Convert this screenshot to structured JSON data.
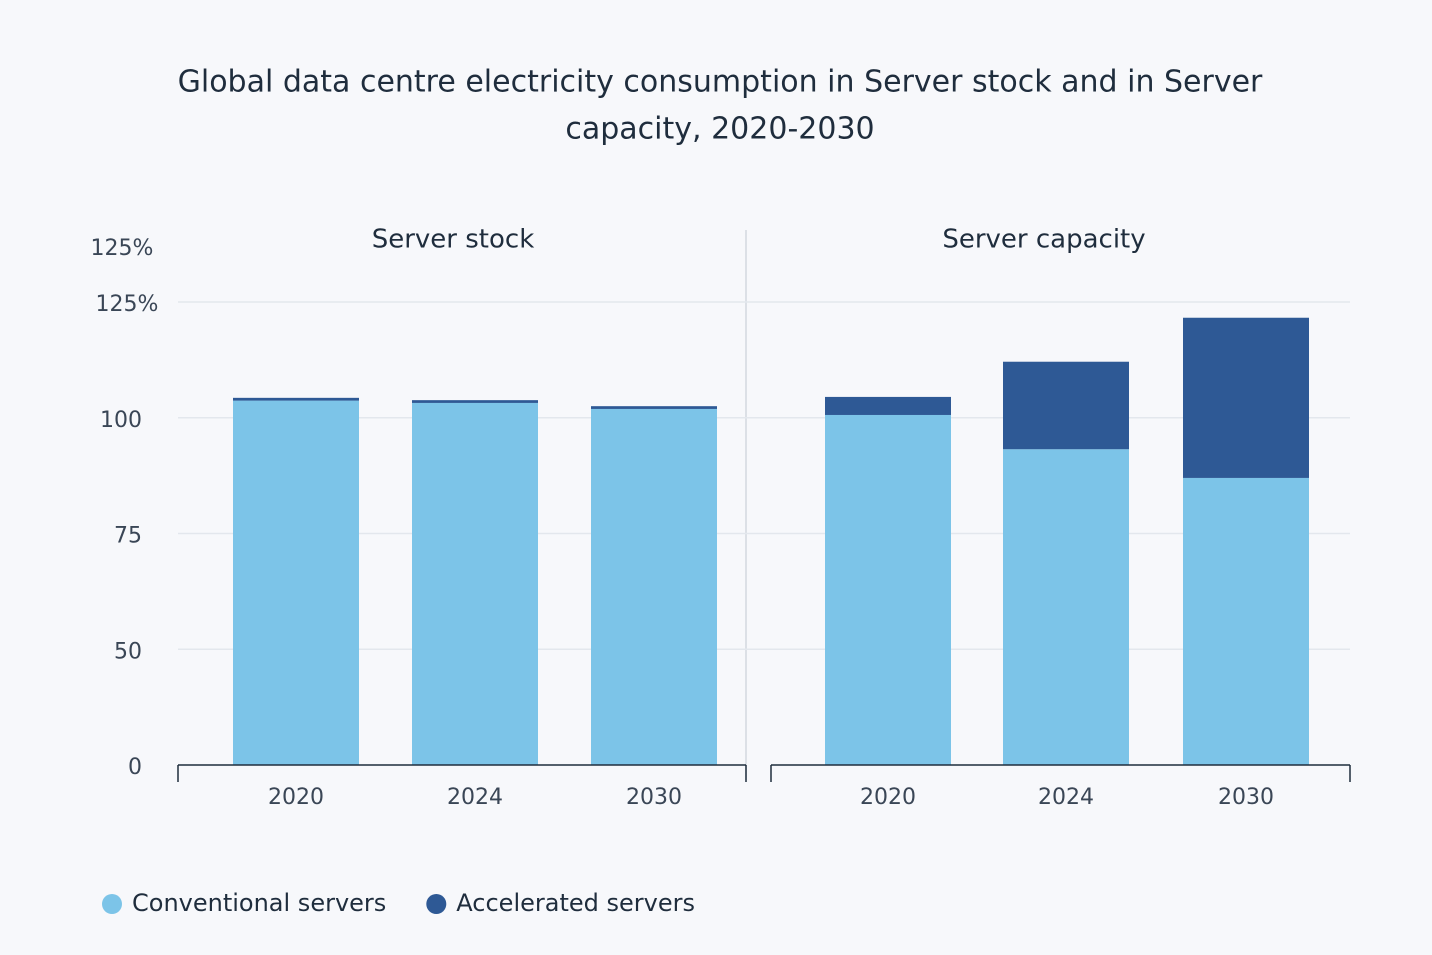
{
  "title_line_1": "Global data centre electricity consumption in Server stock and in Server",
  "title_line_2": "capacity, 2020-2030",
  "y_axis_top_label": "125%",
  "chart_data": [
    {
      "type": "bar",
      "stacked": true,
      "subtitle": "Server stock",
      "categories": [
        "2020",
        "2024",
        "2030"
      ],
      "series": [
        {
          "name": "Conventional servers",
          "color": "#7cc4e8",
          "values": [
            103.7,
            103.2,
            101.9
          ]
        },
        {
          "name": "Accelerated servers",
          "color": "#2e5995",
          "values": [
            0.6,
            0.6,
            0.6
          ]
        }
      ],
      "ylim": [
        0,
        125
      ],
      "yticks": [
        0,
        50,
        75,
        100,
        {
          "value": 125,
          "label": "125%"
        }
      ],
      "grid": true
    },
    {
      "type": "bar",
      "stacked": true,
      "subtitle": "Server capacity",
      "categories": [
        "2020",
        "2024",
        "2030"
      ],
      "series": [
        {
          "name": "Conventional servers",
          "color": "#7cc4e8",
          "values": [
            100.6,
            93.2,
            87.0
          ]
        },
        {
          "name": "Accelerated servers",
          "color": "#2e5995",
          "values": [
            3.9,
            18.9,
            34.6
          ]
        }
      ],
      "ylim": [
        0,
        125
      ],
      "grid": true
    }
  ]
}
